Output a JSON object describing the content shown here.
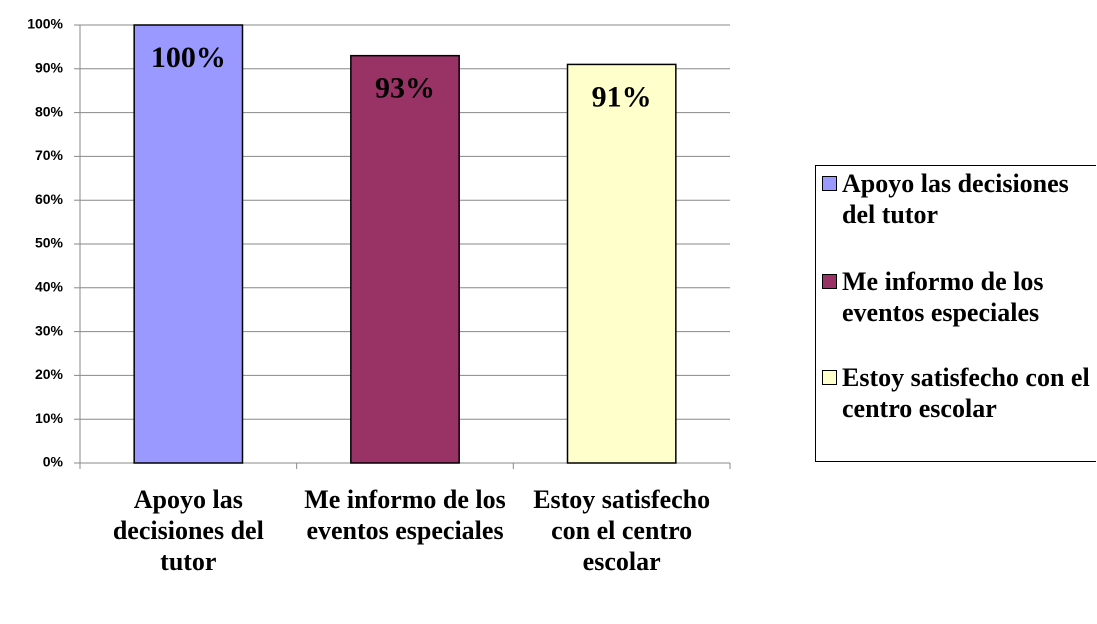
{
  "chart_data": {
    "type": "bar",
    "categories": [
      "Apoyo las decisiones del tutor",
      "Me informo de los eventos especiales",
      "Estoy satisfecho con el centro escolar"
    ],
    "values": [
      100,
      93,
      91
    ],
    "value_labels": [
      "100%",
      "93%",
      "91%"
    ],
    "colors": [
      "#9999ff",
      "#993366",
      "#ffffcc"
    ],
    "ylim": [
      0,
      100
    ],
    "yticks": [
      {
        "value": 0,
        "label": "0%"
      },
      {
        "value": 10,
        "label": "10%"
      },
      {
        "value": 20,
        "label": "20%"
      },
      {
        "value": 30,
        "label": "30%"
      },
      {
        "value": 40,
        "label": "40%"
      },
      {
        "value": 50,
        "label": "50%"
      },
      {
        "value": 60,
        "label": "60%"
      },
      {
        "value": 70,
        "label": "70%"
      },
      {
        "value": 80,
        "label": "80%"
      },
      {
        "value": 90,
        "label": "90%"
      },
      {
        "value": 100,
        "label": "100%"
      }
    ],
    "grid": true,
    "legend": "right"
  }
}
